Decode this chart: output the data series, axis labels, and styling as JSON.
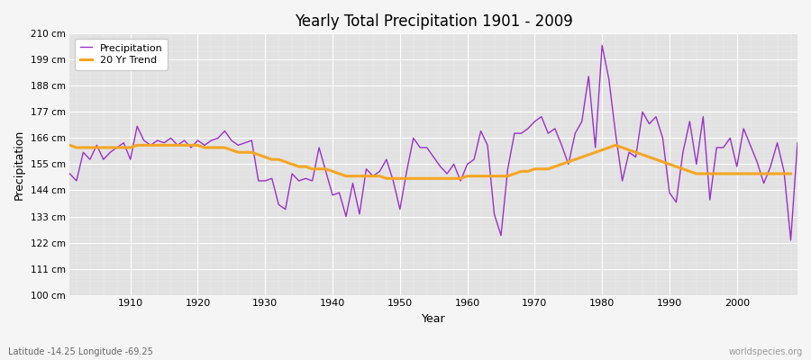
{
  "title": "Yearly Total Precipitation 1901 - 2009",
  "xlabel": "Year",
  "ylabel": "Precipitation",
  "subtitle": "Latitude -14.25 Longitude -69.25",
  "watermark": "worldspecies.org",
  "ylim": [
    100,
    210
  ],
  "yticks": [
    100,
    111,
    122,
    133,
    144,
    155,
    166,
    177,
    188,
    199,
    210
  ],
  "ytick_labels": [
    "100 cm",
    "111 cm",
    "122 cm",
    "133 cm",
    "144 cm",
    "155 cm",
    "166 cm",
    "177 cm",
    "188 cm",
    "199 cm",
    "210 cm"
  ],
  "precip_color": "#9b30c8",
  "trend_color": "#f5a623",
  "fig_bg_color": "#f5f5f5",
  "plot_bg_color": "#e0e0e0",
  "years": [
    1901,
    1902,
    1903,
    1904,
    1905,
    1906,
    1907,
    1908,
    1909,
    1910,
    1911,
    1912,
    1913,
    1914,
    1915,
    1916,
    1917,
    1918,
    1919,
    1920,
    1921,
    1922,
    1923,
    1924,
    1925,
    1926,
    1927,
    1928,
    1929,
    1930,
    1931,
    1932,
    1933,
    1934,
    1935,
    1936,
    1937,
    1938,
    1939,
    1940,
    1941,
    1942,
    1943,
    1944,
    1945,
    1946,
    1947,
    1948,
    1949,
    1950,
    1951,
    1952,
    1953,
    1954,
    1955,
    1956,
    1957,
    1958,
    1959,
    1960,
    1961,
    1962,
    1963,
    1964,
    1965,
    1966,
    1967,
    1968,
    1969,
    1970,
    1971,
    1972,
    1973,
    1974,
    1975,
    1976,
    1977,
    1978,
    1979,
    1980,
    1981,
    1982,
    1983,
    1984,
    1985,
    1986,
    1987,
    1988,
    1989,
    1990,
    1991,
    1992,
    1993,
    1994,
    1995,
    1996,
    1997,
    1998,
    1999,
    2000,
    2001,
    2002,
    2003,
    2004,
    2005,
    2006,
    2007,
    2008,
    2009
  ],
  "precip": [
    151,
    148,
    160,
    157,
    163,
    157,
    160,
    162,
    164,
    157,
    171,
    165,
    163,
    165,
    164,
    166,
    163,
    165,
    162,
    165,
    163,
    165,
    166,
    169,
    165,
    163,
    164,
    165,
    148,
    148,
    149,
    138,
    136,
    151,
    148,
    149,
    148,
    162,
    152,
    142,
    143,
    133,
    147,
    134,
    153,
    150,
    152,
    157,
    148,
    136,
    152,
    166,
    162,
    162,
    158,
    154,
    151,
    155,
    148,
    155,
    157,
    169,
    163,
    134,
    125,
    153,
    168,
    168,
    170,
    173,
    175,
    168,
    170,
    163,
    155,
    168,
    173,
    192,
    162,
    205,
    191,
    168,
    148,
    160,
    158,
    177,
    172,
    175,
    166,
    143,
    139,
    160,
    173,
    155,
    175,
    140,
    162,
    162,
    166,
    154,
    170,
    163,
    156,
    147,
    154,
    164,
    152,
    123,
    164
  ],
  "trend": [
    163,
    162,
    162,
    162,
    162,
    162,
    162,
    162,
    162,
    162,
    163,
    163,
    163,
    163,
    163,
    163,
    163,
    163,
    163,
    163,
    162,
    162,
    162,
    162,
    161,
    160,
    160,
    160,
    159,
    158,
    157,
    157,
    156,
    155,
    154,
    154,
    153,
    153,
    153,
    152,
    151,
    150,
    150,
    150,
    150,
    150,
    150,
    149,
    149,
    149,
    149,
    149,
    149,
    149,
    149,
    149,
    149,
    149,
    149,
    150,
    150,
    150,
    150,
    150,
    150,
    150,
    151,
    152,
    152,
    153,
    153,
    153,
    154,
    155,
    156,
    157,
    158,
    159,
    160,
    161,
    162,
    163,
    162,
    161,
    160,
    159,
    158,
    157,
    156,
    155,
    154,
    153,
    152,
    151,
    151,
    151,
    151,
    151,
    151,
    151,
    151,
    151,
    151,
    151,
    151,
    151,
    151,
    151,
    null
  ],
  "xticks": [
    1910,
    1920,
    1930,
    1940,
    1950,
    1960,
    1970,
    1980,
    1990,
    2000
  ]
}
